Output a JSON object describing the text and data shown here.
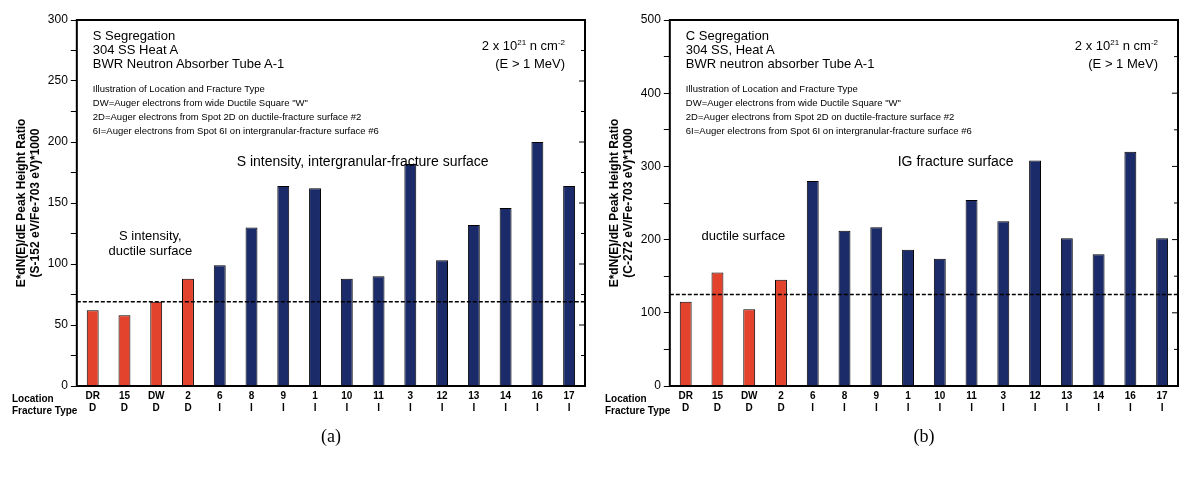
{
  "chart_data": [
    {
      "type": "bar",
      "title": "S Segregation\n304 SS Heat A\nBWR Neutron Absorber Tube A-1",
      "xlabel": "Location\nFracture Type",
      "ylabel": "E*dN(E)/dE Peak Height Ratio\n(S-152 eV/Fe-703 eV)*1000",
      "categories": [
        "DR\nD",
        "15\nD",
        "DW\nD",
        "2\nD",
        "6\nI",
        "8\nI",
        "9\nI",
        "1\nI",
        "10\nI",
        "11\nI",
        "3\nI",
        "12\nI",
        "13\nI",
        "14\nI",
        "16\nI",
        "17\nI"
      ],
      "values": [
        62,
        58,
        69,
        88,
        99,
        130,
        164,
        162,
        88,
        90,
        182,
        103,
        132,
        146,
        200,
        164
      ],
      "colors": [
        "#e3422c",
        "#e3422c",
        "#e3422c",
        "#e3422c",
        "#1b2a68",
        "#1b2a68",
        "#1b2a68",
        "#1b2a68",
        "#1b2a68",
        "#1b2a68",
        "#1b2a68",
        "#1b2a68",
        "#1b2a68",
        "#1b2a68",
        "#1b2a68",
        "#1b2a68"
      ],
      "ylim": [
        0,
        300
      ],
      "yticks": [
        0,
        {
          "value": 25,
          "label": null
        },
        50,
        {
          "value": 75,
          "label": null
        },
        100,
        {
          "value": 125,
          "label": null
        },
        150,
        {
          "value": 175,
          "label": null
        },
        200,
        {
          "value": 225,
          "label": null
        },
        250,
        {
          "value": 275,
          "label": null
        },
        300
      ],
      "ref_lines": [
        {
          "axis": "y",
          "value": 69,
          "line_style": "dashed",
          "color": "#000000"
        }
      ],
      "annotations": [
        "2 x 10$^{21}$ n cm$^{-2}$\n(E > 1 MeV)",
        "Illustration of Location and Fracture Type\nDW=Auger electrons from wide Ductile Square \"W\"\n2D=Auger electrons from Spot 2D on ductile-fracture surface #2\n6I=Auger electrons from Spot 6I on intergranular-fracture surface #6",
        "S intensity,\nductile surface",
        "S intensity, intergranular-fracture surface",
        "(a)"
      ],
      "grid": false,
      "legend": false
    },
    {
      "type": "bar",
      "title": "C Segregation\n304 SS, Heat A\nBWR neutron absorber Tube A-1",
      "xlabel": "Location\nFracture Type",
      "ylabel": "E*dN(E)/dE Peak Height Ratio\n(C-272 eV/Fe-703 eV)*1000",
      "categories": [
        "DR\nD",
        "15\nD",
        "DW\nD",
        "2\nD",
        "6\nI",
        "8\nI",
        "9\nI",
        "1\nI",
        "10\nI",
        "11\nI",
        "3\nI",
        "12\nI",
        "13\nI",
        "14\nI",
        "16\nI",
        "17\nI"
      ],
      "values": [
        115,
        155,
        105,
        145,
        280,
        212,
        217,
        186,
        174,
        254,
        225,
        308,
        202,
        180,
        320,
        202
      ],
      "colors": [
        "#e3422c",
        "#e3422c",
        "#e3422c",
        "#e3422c",
        "#1b2a68",
        "#1b2a68",
        "#1b2a68",
        "#1b2a68",
        "#1b2a68",
        "#1b2a68",
        "#1b2a68",
        "#1b2a68",
        "#1b2a68",
        "#1b2a68",
        "#1b2a68",
        "#1b2a68"
      ],
      "ylim": [
        0,
        500
      ],
      "yticks": [
        0,
        {
          "value": 50,
          "label": null
        },
        100,
        {
          "value": 150,
          "label": null
        },
        200,
        {
          "value": 250,
          "label": null
        },
        300,
        {
          "value": 350,
          "label": null
        },
        400,
        {
          "value": 450,
          "label": null
        },
        500
      ],
      "ref_lines": [
        {
          "axis": "y",
          "value": 125,
          "line_style": "dashed",
          "color": "#000000"
        }
      ],
      "annotations": [
        "2 x 10$^{21}$ n cm$^{-2}$\n(E > 1 MeV)",
        "Illustration of Location and Fracture Type\nDW=Auger electrons from wide Ductile Square \"W\"\n2D=Auger electrons from Spot 2D on ductile-fracture surface #2\n6I=Auger electrons from Spot 6I on intergranular-fracture surface #6",
        "ductile surface",
        "IG fracture surface",
        "(b)"
      ],
      "grid": false,
      "legend": false
    }
  ]
}
